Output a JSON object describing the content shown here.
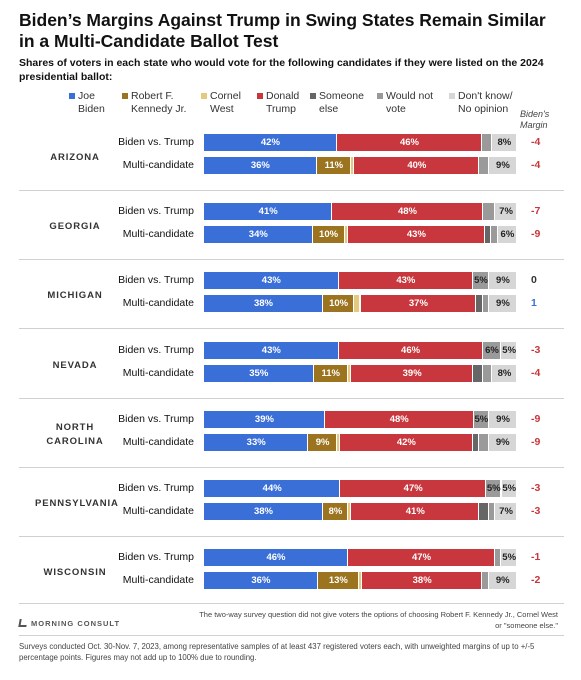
{
  "header": {
    "title": "Biden’s Margins Against Trump in Swing States Remain Similar in a Multi-Candidate Ballot Test",
    "subtitle": "Shares of voters in each state who would vote for the following candidates if they were listed on the 2024 presidential ballot:"
  },
  "legend": [
    {
      "label": "Joe\nBiden",
      "color": "#3b6fd8"
    },
    {
      "label": "Robert F.\nKennedy Jr.",
      "color": "#9c7420"
    },
    {
      "label": "Cornel\nWest",
      "color": "#e5c97f"
    },
    {
      "label": "Donald\nTrump",
      "color": "#c7373d"
    },
    {
      "label": "Someone\nelse",
      "color": "#666666"
    },
    {
      "label": "Would not\nvote",
      "color": "#9a9a9a"
    },
    {
      "label": "Don't know/\nNo opinion",
      "color": "#d6d6d6"
    }
  ],
  "margin_header": "Biden's\nMargin",
  "colors": {
    "biden": "#3b6fd8",
    "rfk": "#9c7420",
    "west": "#e5c97f",
    "trump": "#c7373d",
    "someone_else": "#666666",
    "would_not_vote": "#9a9a9a",
    "dont_know": "#d6d6d6",
    "margin_negative": "#c7373d",
    "margin_positive": "#3b6fd8",
    "margin_zero": "#333333"
  },
  "chart_data": {
    "type": "bar",
    "orientation": "horizontal-stacked",
    "segments": [
      "Joe Biden",
      "Robert F. Kennedy Jr.",
      "Cornel West",
      "Donald Trump",
      "Someone else",
      "Would not vote",
      "Don't know/No opinion"
    ],
    "states": [
      {
        "name": "ARIZONA",
        "rows": [
          {
            "label": "Biden vs. Trump",
            "biden": 42,
            "rfk": 0,
            "west": 0,
            "trump": 46,
            "someone_else": 0,
            "would_not_vote": 3,
            "dont_know": 8,
            "margin": "-4",
            "labels": {
              "biden": "42%",
              "trump": "46%",
              "dont_know": "8%"
            }
          },
          {
            "label": "Multi-candidate",
            "biden": 36,
            "rfk": 11,
            "west": 1,
            "trump": 40,
            "someone_else": 0,
            "would_not_vote": 3,
            "dont_know": 9,
            "margin": "-4",
            "labels": {
              "biden": "36%",
              "rfk": "11%",
              "trump": "40%",
              "dont_know": "9%"
            }
          }
        ]
      },
      {
        "name": "GEORGIA",
        "rows": [
          {
            "label": "Biden vs. Trump",
            "biden": 41,
            "rfk": 0,
            "west": 0,
            "trump": 48,
            "someone_else": 0,
            "would_not_vote": 4,
            "dont_know": 7,
            "margin": "-7",
            "labels": {
              "biden": "41%",
              "trump": "48%",
              "dont_know": "7%"
            }
          },
          {
            "label": "Multi-candidate",
            "biden": 34,
            "rfk": 10,
            "west": 1,
            "trump": 43,
            "someone_else": 2,
            "would_not_vote": 2,
            "dont_know": 6,
            "margin": "-9",
            "labels": {
              "biden": "34%",
              "rfk": "10%",
              "trump": "43%",
              "dont_know": "6%"
            }
          }
        ]
      },
      {
        "name": "MICHIGAN",
        "rows": [
          {
            "label": "Biden vs. Trump",
            "biden": 43,
            "rfk": 0,
            "west": 0,
            "trump": 43,
            "someone_else": 0,
            "would_not_vote": 5,
            "dont_know": 9,
            "margin": "0",
            "labels": {
              "biden": "43%",
              "trump": "43%",
              "would_not_vote": "5%",
              "dont_know": "9%"
            }
          },
          {
            "label": "Multi-candidate",
            "biden": 38,
            "rfk": 10,
            "west": 2,
            "trump": 37,
            "someone_else": 2,
            "would_not_vote": 2,
            "dont_know": 9,
            "margin": "1",
            "labels": {
              "biden": "38%",
              "rfk": "10%",
              "trump": "37%",
              "dont_know": "9%"
            }
          }
        ]
      },
      {
        "name": "NEVADA",
        "rows": [
          {
            "label": "Biden vs. Trump",
            "biden": 43,
            "rfk": 0,
            "west": 0,
            "trump": 46,
            "someone_else": 0,
            "would_not_vote": 6,
            "dont_know": 5,
            "margin": "-3",
            "labels": {
              "biden": "43%",
              "trump": "46%",
              "would_not_vote": "6%",
              "dont_know": "5%"
            }
          },
          {
            "label": "Multi-candidate",
            "biden": 35,
            "rfk": 11,
            "west": 1,
            "trump": 39,
            "someone_else": 3,
            "would_not_vote": 3,
            "dont_know": 8,
            "margin": "-4",
            "labels": {
              "biden": "35%",
              "rfk": "11%",
              "trump": "39%",
              "dont_know": "8%"
            }
          }
        ]
      },
      {
        "name": "NORTH\nCAROLINA",
        "rows": [
          {
            "label": "Biden vs. Trump",
            "biden": 39,
            "rfk": 0,
            "west": 0,
            "trump": 48,
            "someone_else": 0,
            "would_not_vote": 5,
            "dont_know": 9,
            "margin": "-9",
            "labels": {
              "biden": "39%",
              "trump": "48%",
              "would_not_vote": "5%",
              "dont_know": "9%"
            }
          },
          {
            "label": "Multi-candidate",
            "biden": 33,
            "rfk": 9,
            "west": 1,
            "trump": 42,
            "someone_else": 2,
            "would_not_vote": 3,
            "dont_know": 9,
            "margin": "-9",
            "labels": {
              "biden": "33%",
              "rfk": "9%",
              "trump": "42%",
              "dont_know": "9%"
            }
          }
        ]
      },
      {
        "name": "PENNSYLVANIA",
        "rows": [
          {
            "label": "Biden vs. Trump",
            "biden": 44,
            "rfk": 0,
            "west": 0,
            "trump": 47,
            "someone_else": 0,
            "would_not_vote": 5,
            "dont_know": 5,
            "margin": "-3",
            "labels": {
              "biden": "44%",
              "trump": "47%",
              "would_not_vote": "5%",
              "dont_know": "5%"
            }
          },
          {
            "label": "Multi-candidate",
            "biden": 38,
            "rfk": 8,
            "west": 1,
            "trump": 41,
            "someone_else": 3,
            "would_not_vote": 2,
            "dont_know": 7,
            "margin": "-3",
            "labels": {
              "biden": "38%",
              "rfk": "8%",
              "trump": "41%",
              "dont_know": "7%"
            }
          }
        ]
      },
      {
        "name": "WISCONSIN",
        "rows": [
          {
            "label": "Biden vs. Trump",
            "biden": 46,
            "rfk": 0,
            "west": 0,
            "trump": 47,
            "someone_else": 0,
            "would_not_vote": 2,
            "dont_know": 5,
            "margin": "-1",
            "labels": {
              "biden": "46%",
              "trump": "47%",
              "dont_know": "5%"
            }
          },
          {
            "label": "Multi-candidate",
            "biden": 36,
            "rfk": 13,
            "west": 1,
            "trump": 38,
            "someone_else": 0,
            "would_not_vote": 2,
            "dont_know": 9,
            "margin": "-2",
            "labels": {
              "biden": "36%",
              "rfk": "13%",
              "trump": "38%",
              "dont_know": "9%"
            }
          }
        ]
      }
    ]
  },
  "footnote_right": "The two-way survey question did not give voters the options of choosing Robert F. Kennedy Jr., Cornel West or \"someone else.\"",
  "brand": "MORNING CONSULT",
  "footer": "Surveys conducted Oct. 30-Nov. 7, 2023, among representative samples of at least 437 registered voters each, with unweighted margins of up to +/-5 percentage points. Figures may not add up to 100% due to rounding."
}
